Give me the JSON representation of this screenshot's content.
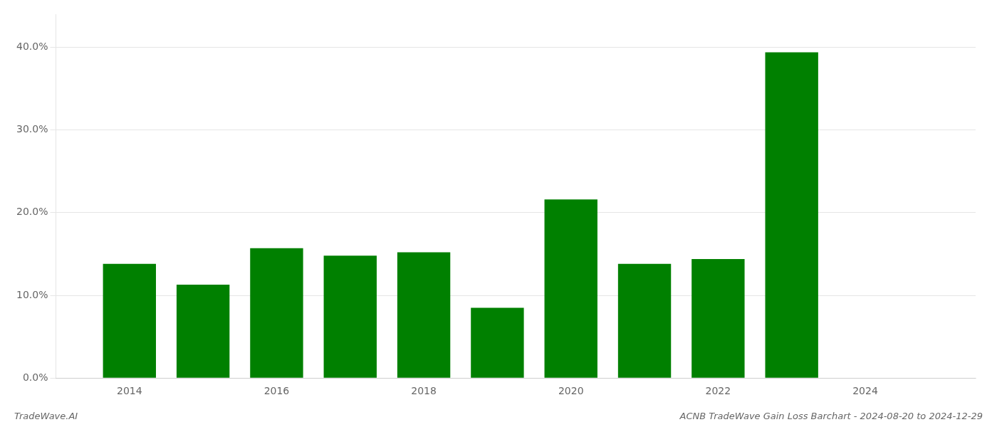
{
  "chart_data": {
    "type": "bar",
    "title": "ACNB TradeWave Gain Loss Barchart - 2024-08-20 to 2024-12-29",
    "annotations": [
      "TradeWave.AI"
    ],
    "x": [
      2014,
      2015,
      2016,
      2017,
      2018,
      2019,
      2020,
      2021,
      2022,
      2023
    ],
    "values": [
      0.138,
      0.113,
      0.157,
      0.148,
      0.152,
      0.085,
      0.216,
      0.138,
      0.144,
      0.394
    ],
    "color": "#008000",
    "xlim": [
      2013.0,
      2025.5
    ],
    "xticks": [
      2014,
      2016,
      2018,
      2020,
      2022,
      2024
    ],
    "ylim": [
      0,
      0.44
    ],
    "yticks": [
      {
        "value": 0.0,
        "label": "0.0%"
      },
      {
        "value": 0.1,
        "label": "10.0%"
      },
      {
        "value": 0.2,
        "label": "20.0%"
      },
      {
        "value": 0.3,
        "label": "30.0%"
      },
      {
        "value": 0.4,
        "label": "40.0%"
      }
    ],
    "grid": "y"
  }
}
